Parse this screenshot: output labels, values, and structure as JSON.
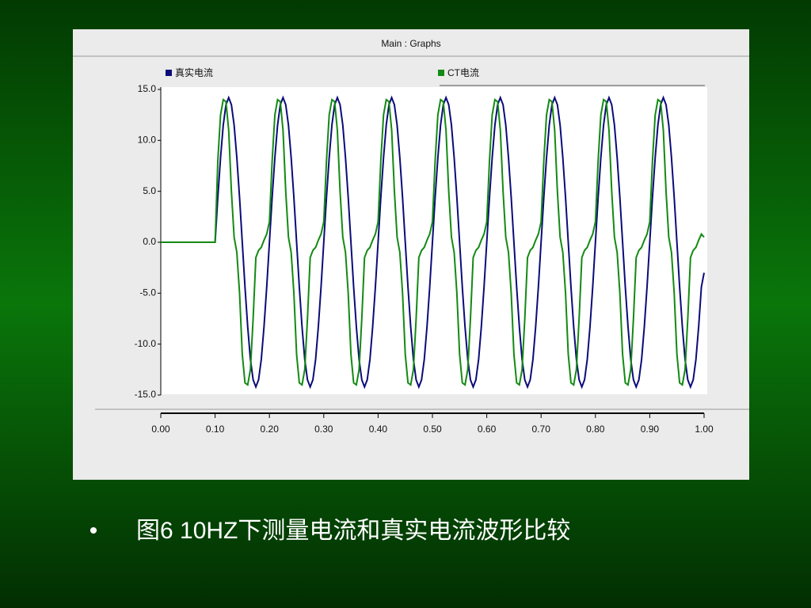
{
  "caption": {
    "bullet": "•",
    "text": "图6  10HZ下测量电流和真实电流波形比较"
  },
  "chart_data": {
    "type": "line",
    "title": "Main : Graphs",
    "x": [
      0,
      0.005,
      0.01,
      0.015,
      0.02,
      0.025,
      0.03,
      0.035,
      0.04,
      0.045,
      0.05,
      0.055,
      0.06,
      0.065,
      0.07,
      0.075,
      0.08,
      0.085,
      0.09,
      0.095,
      0.1,
      0.105,
      0.11,
      0.115,
      0.12,
      0.125,
      0.13,
      0.135,
      0.14,
      0.145,
      0.15,
      0.155,
      0.16,
      0.165,
      0.17,
      0.175,
      0.18,
      0.185,
      0.19,
      0.195,
      0.2,
      0.205,
      0.21,
      0.215,
      0.22,
      0.225,
      0.23,
      0.235,
      0.24,
      0.245,
      0.25,
      0.255,
      0.26,
      0.265,
      0.27,
      0.275,
      0.28,
      0.285,
      0.29,
      0.295,
      0.3,
      0.305,
      0.31,
      0.315,
      0.32,
      0.325,
      0.33,
      0.335,
      0.34,
      0.345,
      0.35,
      0.355,
      0.36,
      0.365,
      0.37,
      0.375,
      0.38,
      0.385,
      0.39,
      0.395,
      0.4,
      0.405,
      0.41,
      0.415,
      0.42,
      0.425,
      0.43,
      0.435,
      0.44,
      0.445,
      0.45,
      0.455,
      0.46,
      0.465,
      0.47,
      0.475,
      0.48,
      0.485,
      0.49,
      0.495,
      0.5,
      0.505,
      0.51,
      0.515,
      0.52,
      0.525,
      0.53,
      0.535,
      0.54,
      0.545,
      0.55,
      0.555,
      0.56,
      0.565,
      0.57,
      0.575,
      0.58,
      0.585,
      0.59,
      0.595,
      0.6,
      0.605,
      0.61,
      0.615,
      0.62,
      0.625,
      0.63,
      0.635,
      0.64,
      0.645,
      0.65,
      0.655,
      0.66,
      0.665,
      0.67,
      0.675,
      0.68,
      0.685,
      0.69,
      0.695,
      0.7,
      0.705,
      0.71,
      0.715,
      0.72,
      0.725,
      0.73,
      0.735,
      0.74,
      0.745,
      0.75,
      0.755,
      0.76,
      0.765,
      0.77,
      0.775,
      0.78,
      0.785,
      0.79,
      0.795,
      0.8,
      0.805,
      0.81,
      0.815,
      0.82,
      0.825,
      0.83,
      0.835,
      0.84,
      0.845,
      0.85,
      0.855,
      0.86,
      0.865,
      0.87,
      0.875,
      0.88,
      0.885,
      0.89,
      0.895,
      0.9,
      0.905,
      0.91,
      0.915,
      0.92,
      0.925,
      0.93,
      0.935,
      0.94,
      0.945,
      0.95,
      0.955,
      0.96,
      0.965,
      0.97,
      0.975,
      0.98,
      0.985,
      0.99,
      0.995,
      1
    ],
    "series": [
      {
        "name": "真实电流",
        "color": "#0b0b7a",
        "values": [
          0,
          0,
          0,
          0,
          0,
          0,
          0,
          0,
          0,
          0,
          0,
          0,
          0,
          0,
          0,
          0,
          0,
          0,
          0,
          0,
          0,
          4.4,
          8.3,
          11.5,
          13.5,
          14.2,
          13.5,
          11.5,
          8.3,
          4.4,
          0,
          -4.4,
          -8.3,
          -11.5,
          -13.5,
          -14.2,
          -13.5,
          -11.5,
          -8.3,
          -4.4,
          0,
          4.4,
          8.3,
          11.5,
          13.5,
          14.2,
          13.5,
          11.5,
          8.3,
          4.4,
          0,
          -4.4,
          -8.3,
          -11.5,
          -13.5,
          -14.2,
          -13.5,
          -11.5,
          -8.3,
          -4.4,
          0,
          4.4,
          8.3,
          11.5,
          13.5,
          14.2,
          13.5,
          11.5,
          8.3,
          4.4,
          0,
          -4.4,
          -8.3,
          -11.5,
          -13.5,
          -14.2,
          -13.5,
          -11.5,
          -8.3,
          -4.4,
          0,
          4.4,
          8.3,
          11.5,
          13.5,
          14.2,
          13.5,
          11.5,
          8.3,
          4.4,
          0,
          -4.4,
          -8.3,
          -11.5,
          -13.5,
          -14.2,
          -13.5,
          -11.5,
          -8.3,
          -4.4,
          0,
          4.4,
          8.3,
          11.5,
          13.5,
          14.2,
          13.5,
          11.5,
          8.3,
          4.4,
          0,
          -4.4,
          -8.3,
          -11.5,
          -13.5,
          -14.2,
          -13.5,
          -11.5,
          -8.3,
          -4.4,
          0,
          4.4,
          8.3,
          11.5,
          13.5,
          14.2,
          13.5,
          11.5,
          8.3,
          4.4,
          0,
          -4.4,
          -8.3,
          -11.5,
          -13.5,
          -14.2,
          -13.5,
          -11.5,
          -8.3,
          -4.4,
          0,
          4.4,
          8.3,
          11.5,
          13.5,
          14.2,
          13.5,
          11.5,
          8.3,
          4.4,
          0,
          -4.4,
          -8.3,
          -11.5,
          -13.5,
          -14.2,
          -13.5,
          -11.5,
          -8.3,
          -4.4,
          0,
          4.4,
          8.3,
          11.5,
          13.5,
          14.2,
          13.5,
          11.5,
          8.3,
          4.4,
          0,
          -4.4,
          -8.3,
          -11.5,
          -13.5,
          -14.2,
          -13.5,
          -11.5,
          -8.3,
          -4.4,
          0,
          4.4,
          8.3,
          11.5,
          13.5,
          14.2,
          13.5,
          11.5,
          8.3,
          4.4,
          0,
          -4.4,
          -8.3,
          -11.5,
          -13.5,
          -14.2,
          -13.5,
          -11.5,
          -8.3,
          -4.4,
          -3
        ]
      },
      {
        "name": "CT电流",
        "color": "#138a13",
        "values": [
          0,
          0,
          0,
          0,
          0,
          0,
          0,
          0,
          0,
          0,
          0,
          0,
          0,
          0,
          0,
          0,
          0,
          0,
          0,
          0,
          0,
          8,
          12.5,
          14,
          13.8,
          11,
          5,
          0.5,
          -1,
          -5,
          -11,
          -13.8,
          -14,
          -12.5,
          -7.5,
          -1.5,
          -0.8,
          -0.5,
          0.2,
          0.8,
          2,
          8,
          12.5,
          14,
          13.8,
          11,
          5,
          0.5,
          -1,
          -5,
          -11,
          -13.8,
          -14,
          -12.5,
          -7.5,
          -1.5,
          -0.8,
          -0.5,
          0.2,
          0.8,
          2,
          8,
          12.5,
          14,
          13.8,
          11,
          5,
          0.5,
          -1,
          -5,
          -11,
          -13.8,
          -14,
          -12.5,
          -7.5,
          -1.5,
          -0.8,
          -0.5,
          0.2,
          0.8,
          2,
          8,
          12.5,
          14,
          13.8,
          11,
          5,
          0.5,
          -1,
          -5,
          -11,
          -13.8,
          -14,
          -12.5,
          -7.5,
          -1.5,
          -0.8,
          -0.5,
          0.2,
          0.8,
          2,
          8,
          12.5,
          14,
          13.8,
          11,
          5,
          0.5,
          -1,
          -5,
          -11,
          -13.8,
          -14,
          -12.5,
          -7.5,
          -1.5,
          -0.8,
          -0.5,
          0.2,
          0.8,
          2,
          8,
          12.5,
          14,
          13.8,
          11,
          5,
          0.5,
          -1,
          -5,
          -11,
          -13.8,
          -14,
          -12.5,
          -7.5,
          -1.5,
          -0.8,
          -0.5,
          0.2,
          0.8,
          2,
          8,
          12.5,
          14,
          13.8,
          11,
          5,
          0.5,
          -1,
          -5,
          -11,
          -13.8,
          -14,
          -12.5,
          -7.5,
          -1.5,
          -0.8,
          -0.5,
          0.2,
          0.8,
          2,
          8,
          12.5,
          14,
          13.8,
          11,
          5,
          0.5,
          -1,
          -5,
          -11,
          -13.8,
          -14,
          -12.5,
          -7.5,
          -1.5,
          -0.8,
          -0.5,
          0.2,
          0.8,
          2,
          8,
          12.5,
          14,
          13.8,
          11,
          5,
          0.5,
          -1,
          -5,
          -11,
          -13.8,
          -14,
          -12.5,
          -7.5,
          -1.5,
          -0.8,
          -0.5,
          0.2,
          0.8,
          0.5
        ]
      }
    ],
    "xlim": [
      0,
      1
    ],
    "ylim": [
      -15,
      15
    ],
    "xticks": [
      {
        "value": 0,
        "label": "0.00"
      },
      {
        "value": 0.1,
        "label": "0.10"
      },
      {
        "value": 0.2,
        "label": "0.20"
      },
      {
        "value": 0.3,
        "label": "0.30"
      },
      {
        "value": 0.4,
        "label": "0.40"
      },
      {
        "value": 0.5,
        "label": "0.50"
      },
      {
        "value": 0.6,
        "label": "0.60"
      },
      {
        "value": 0.7,
        "label": "0.70"
      },
      {
        "value": 0.8,
        "label": "0.80"
      },
      {
        "value": 0.9,
        "label": "0.90"
      },
      {
        "value": 1,
        "label": "1.00"
      }
    ],
    "yticks": [
      {
        "value": 15,
        "label": "15.0"
      },
      {
        "value": 10,
        "label": "10.0"
      },
      {
        "value": 5,
        "label": "5.0"
      },
      {
        "value": 0,
        "label": "0.0"
      },
      {
        "value": -5,
        "label": "-5.0"
      },
      {
        "value": -10,
        "label": "-10.0"
      },
      {
        "value": -15,
        "label": "-15.0"
      }
    ]
  }
}
